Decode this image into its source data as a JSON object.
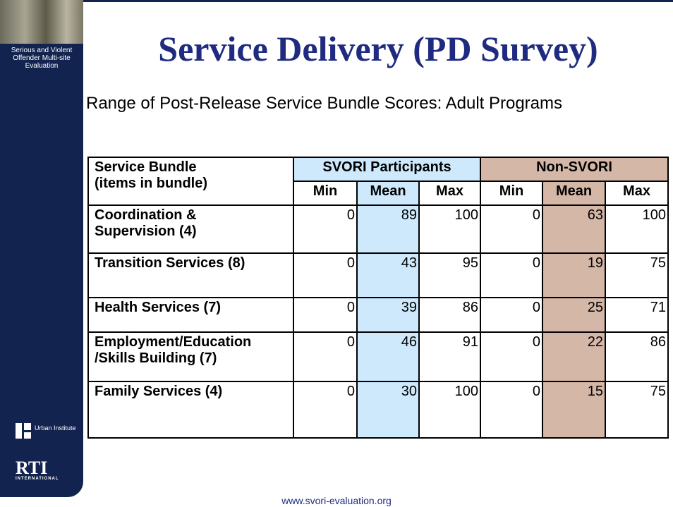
{
  "sidebar": {
    "project": "Serious and Violent Offender Multi-site Evaluation",
    "logo_urban": "Urban Institute",
    "logo_rti": "RTI",
    "logo_rti_sub": "INTERNATIONAL"
  },
  "header": {
    "title": "Service Delivery (PD Survey)",
    "subtitle": "Range of Post-Release Service Bundle Scores: Adult Programs"
  },
  "table": {
    "bundle_header": [
      "Service Bundle",
      "(items in bundle)"
    ],
    "groups": [
      "SVORI Participants",
      "Non-SVORI"
    ],
    "columns": [
      "Min",
      "Mean",
      "Max",
      "Min",
      "Mean",
      "Max"
    ],
    "rows": [
      {
        "label": [
          "Coordination &",
          "Supervision (4)"
        ],
        "values": [
          0,
          89,
          100,
          0,
          63,
          100
        ]
      },
      {
        "label": [
          "Transition Services (8)"
        ],
        "values": [
          0,
          43,
          95,
          0,
          19,
          75
        ]
      },
      {
        "label": [
          "Health Services (7)"
        ],
        "values": [
          0,
          39,
          86,
          0,
          25,
          71
        ]
      },
      {
        "label": [
          "Employment/Education",
          "/Skills Building (7)"
        ],
        "values": [
          0,
          46,
          91,
          0,
          22,
          86
        ]
      },
      {
        "label": [
          "Family Services (4)"
        ],
        "values": [
          0,
          30,
          100,
          0,
          15,
          75
        ]
      }
    ]
  },
  "footer": {
    "url": "www.svori-evaluation.org"
  }
}
